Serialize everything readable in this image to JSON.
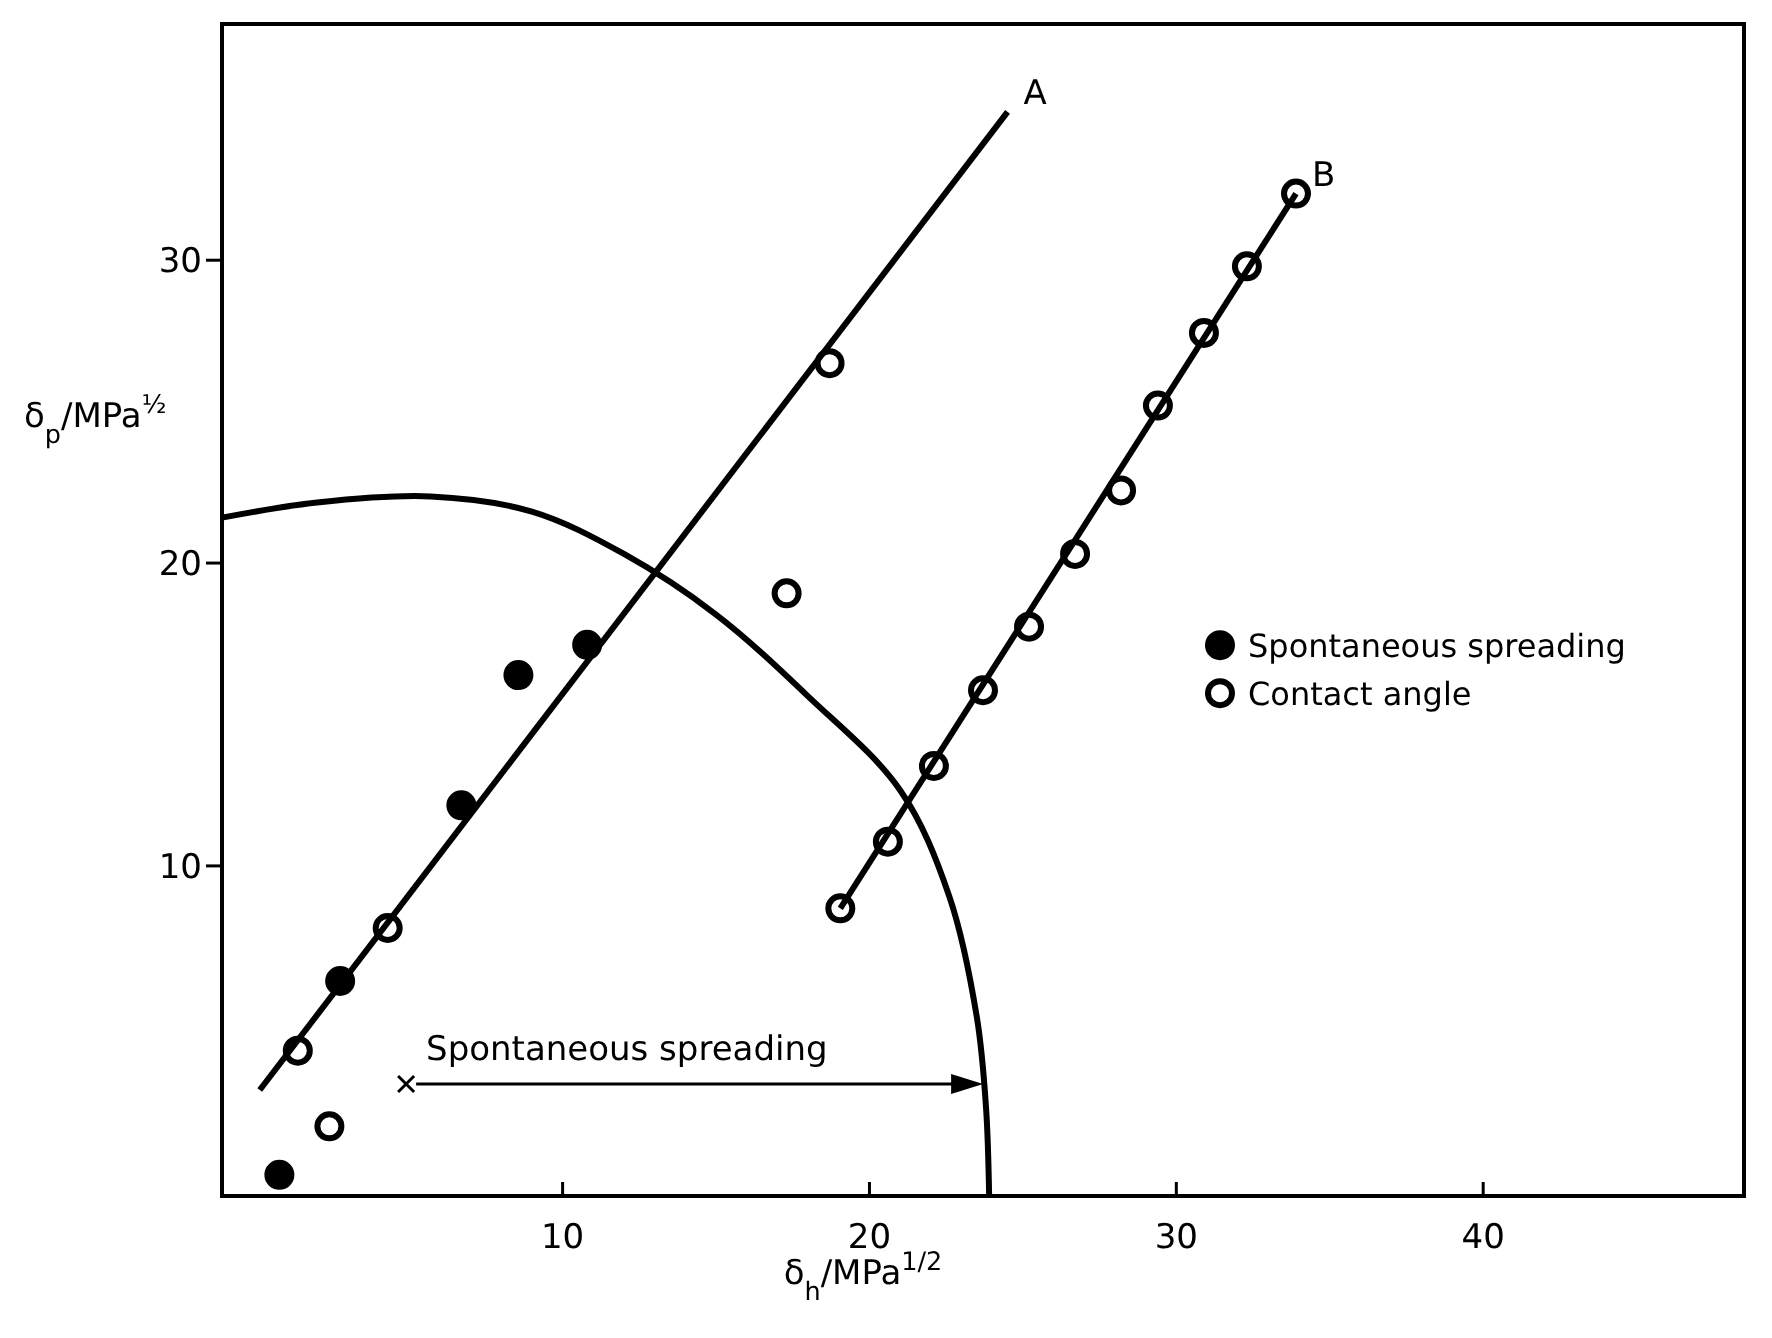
{
  "chart_data": {
    "type": "scatter",
    "xlabel": "δ$_{h}$/MPa$^{1/2}$",
    "ylabel": "δ$_{p}$/MPa$^{½}$",
    "xlim": [
      -1.1,
      48.5
    ],
    "ylim": [
      -0.9,
      37.8
    ],
    "xticks": [
      10,
      20,
      30,
      40
    ],
    "yticks": [
      10,
      20,
      30
    ],
    "grid": false,
    "legend": "right",
    "series": [
      {
        "name": "Spontaneous spreading",
        "marker": "circle",
        "color": "#000000",
        "x": [
          0.77,
          2.75,
          6.7,
          8.56,
          10.8
        ],
        "values": [
          -0.2,
          6.2,
          12.0,
          16.3,
          17.3
        ]
      },
      {
        "name": "Contact angle",
        "marker": "circle",
        "color": "#ffffff",
        "x": [
          1.37,
          2.4,
          4.3,
          17.3,
          18.7,
          19.05,
          20.6,
          22.1,
          23.7,
          25.2,
          26.7,
          28.2,
          29.4,
          30.9,
          32.3,
          33.9
        ],
        "values": [
          3.9,
          1.4,
          7.95,
          19.0,
          26.6,
          8.6,
          10.8,
          13.3,
          15.8,
          17.9,
          20.3,
          22.4,
          25.2,
          27.6,
          29.8,
          32.2
        ]
      },
      {
        "type": "line",
        "color": "#000000",
        "x": [
          0.13,
          24.5
        ],
        "values": [
          2.6,
          34.9
        ]
      },
      {
        "type": "line",
        "color": "#000000",
        "x": [
          19.05,
          33.9
        ],
        "values": [
          8.6,
          32.2
        ]
      },
      {
        "type": "line",
        "color": "#000000",
        "x": [
          -1.1,
          2,
          5.7,
          9,
          12,
          15,
          18,
          21,
          22.6,
          23.5,
          23.8,
          23.9
        ],
        "values": [
          21.5,
          22.0,
          22.2,
          21.7,
          20.3,
          18.3,
          15.6,
          12.5,
          9,
          5,
          2,
          -0.9
        ]
      },
      {
        "marker": "cross",
        "color": "#000000",
        "x": [
          4.9
        ],
        "values": [
          2.8
        ]
      }
    ],
    "annotations": [
      {
        "text": "A",
        "x": 24.5,
        "y": 34.9
      },
      {
        "text": "B",
        "x": 33.9,
        "y": 32.2
      },
      {
        "text": "Spontaneous spreading",
        "x": 4.9,
        "y": 2.8
      }
    ]
  }
}
